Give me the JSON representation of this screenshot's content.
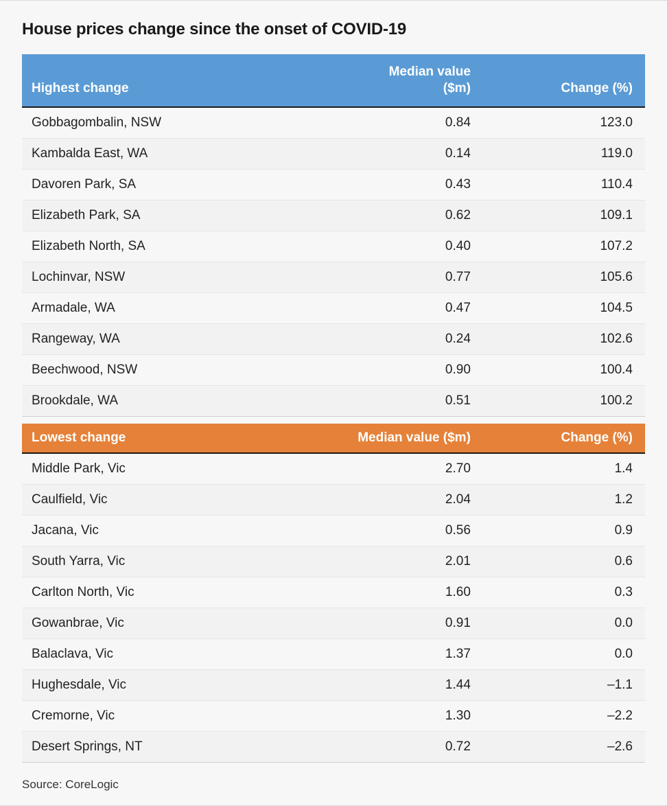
{
  "title": "House prices change since the onset of COVID-19",
  "source": "Source: CoreLogic",
  "highest": {
    "header": {
      "location": "Highest change",
      "median": "Median value ($m)",
      "change": "Change (%)"
    },
    "header_bg": "#5a9bd5",
    "rows": [
      {
        "location": "Gobbagombalin, NSW",
        "median": "0.84",
        "change": "123.0"
      },
      {
        "location": "Kambalda East, WA",
        "median": "0.14",
        "change": "119.0"
      },
      {
        "location": "Davoren Park, SA",
        "median": "0.43",
        "change": "110.4"
      },
      {
        "location": "Elizabeth Park, SA",
        "median": "0.62",
        "change": "109.1"
      },
      {
        "location": "Elizabeth North, SA",
        "median": "0.40",
        "change": "107.2"
      },
      {
        "location": "Lochinvar, NSW",
        "median": "0.77",
        "change": "105.6"
      },
      {
        "location": "Armadale, WA",
        "median": "0.47",
        "change": "104.5"
      },
      {
        "location": "Rangeway, WA",
        "median": "0.24",
        "change": "102.6"
      },
      {
        "location": "Beechwood, NSW",
        "median": "0.90",
        "change": "100.4"
      },
      {
        "location": "Brookdale, WA",
        "median": "0.51",
        "change": "100.2"
      }
    ]
  },
  "lowest": {
    "header": {
      "location": "Lowest change",
      "median": "Median value ($m)",
      "change": "Change (%)"
    },
    "header_bg": "#e58138",
    "rows": [
      {
        "location": "Middle Park, Vic",
        "median": "2.70",
        "change": "1.4"
      },
      {
        "location": "Caulfield, Vic",
        "median": "2.04",
        "change": "1.2"
      },
      {
        "location": "Jacana, Vic",
        "median": "0.56",
        "change": "0.9"
      },
      {
        "location": "South Yarra, Vic",
        "median": "2.01",
        "change": "0.6"
      },
      {
        "location": "Carlton North, Vic",
        "median": "1.60",
        "change": "0.3"
      },
      {
        "location": "Gowanbrae, Vic",
        "median": "0.91",
        "change": "0.0"
      },
      {
        "location": "Balaclava, Vic",
        "median": "1.37",
        "change": "0.0"
      },
      {
        "location": "Hughesdale, Vic",
        "median": "1.44",
        "change": "–1.1"
      },
      {
        "location": "Cremorne, Vic",
        "median": "1.30",
        "change": "–2.2"
      },
      {
        "location": "Desert Springs, NT",
        "median": "0.72",
        "change": "–2.6"
      }
    ]
  },
  "style": {
    "row_alt_bg": "#f2f2f2",
    "row_border": "#e5e5e5",
    "header_text": "#ffffff",
    "body_text": "#222222",
    "title_fontsize": 24,
    "header_fontsize": 19,
    "cell_fontsize": 19
  }
}
